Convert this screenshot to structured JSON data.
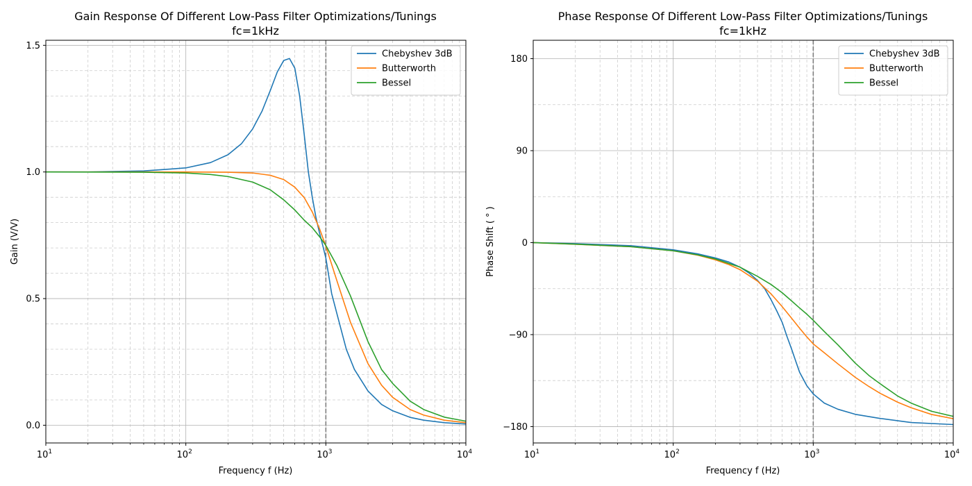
{
  "chart_data": [
    {
      "type": "line",
      "title": "Gain Response Of Different Low-Pass Filter Optimizations/Tunings",
      "subtitle": "fc=1kHz",
      "xlabel": "Frequency f (Hz)",
      "ylabel": "Gain (V/V)",
      "xscale": "log",
      "xlim": [
        10,
        10000
      ],
      "ylim": [
        -0.07,
        1.52
      ],
      "xticks": [
        {
          "value": 10,
          "base": "10",
          "exp": "1"
        },
        {
          "value": 100,
          "base": "10",
          "exp": "2"
        },
        {
          "value": 1000,
          "base": "10",
          "exp": "3"
        },
        {
          "value": 10000,
          "base": "10",
          "exp": "4"
        }
      ],
      "yticks": [
        {
          "value": 0.0,
          "label": "0.0"
        },
        {
          "value": 0.5,
          "label": "0.5"
        },
        {
          "value": 1.0,
          "label": "1.0"
        },
        {
          "value": 1.5,
          "label": "1.5"
        }
      ],
      "yminor_step": 0.1,
      "grid": true,
      "cutoff_line_x": 1000,
      "legend_position": "top-right",
      "series": [
        {
          "name": "Chebyshev 3dB",
          "color": "#1f77b4",
          "x": [
            10,
            20,
            50,
            100,
            150,
            200,
            250,
            300,
            350,
            400,
            450,
            500,
            550,
            600,
            650,
            700,
            750,
            800,
            850,
            900,
            950,
            1000,
            1100,
            1200,
            1400,
            1600,
            2000,
            2500,
            3000,
            4000,
            5000,
            7000,
            10000
          ],
          "y": [
            1.0,
            1.0,
            1.004,
            1.016,
            1.037,
            1.068,
            1.112,
            1.17,
            1.24,
            1.32,
            1.395,
            1.44,
            1.448,
            1.41,
            1.3,
            1.15,
            1.0,
            0.9,
            0.82,
            0.76,
            0.71,
            0.66,
            0.52,
            0.44,
            0.3,
            0.22,
            0.135,
            0.082,
            0.057,
            0.031,
            0.02,
            0.01,
            0.005
          ]
        },
        {
          "name": "Butterworth",
          "color": "#ff7f0e",
          "x": [
            10,
            100,
            200,
            300,
            400,
            500,
            600,
            700,
            800,
            900,
            1000,
            1200,
            1500,
            2000,
            2500,
            3000,
            4000,
            5000,
            7000,
            10000
          ],
          "y": [
            1.0,
            1.0,
            0.999,
            0.996,
            0.987,
            0.97,
            0.94,
            0.899,
            0.842,
            0.777,
            0.707,
            0.57,
            0.406,
            0.243,
            0.158,
            0.11,
            0.062,
            0.04,
            0.02,
            0.01
          ]
        },
        {
          "name": "Bessel",
          "color": "#2ca02c",
          "x": [
            10,
            50,
            100,
            150,
            200,
            300,
            400,
            500,
            600,
            700,
            800,
            900,
            1000,
            1200,
            1500,
            2000,
            2500,
            3000,
            4000,
            5000,
            7000,
            10000
          ],
          "y": [
            1.0,
            0.999,
            0.996,
            0.99,
            0.982,
            0.96,
            0.93,
            0.89,
            0.85,
            0.81,
            0.78,
            0.745,
            0.71,
            0.63,
            0.51,
            0.33,
            0.22,
            0.165,
            0.095,
            0.062,
            0.032,
            0.016
          ]
        }
      ]
    },
    {
      "type": "line",
      "title": "Phase Response Of Different Low-Pass Filter Optimizations/Tunings",
      "subtitle": "fc=1kHz",
      "xlabel": "Frequency f (Hz)",
      "ylabel": "Phase Shift ( ° )",
      "xscale": "log",
      "xlim": [
        10,
        10000
      ],
      "ylim": [
        -196,
        198
      ],
      "xticks": [
        {
          "value": 10,
          "base": "10",
          "exp": "1"
        },
        {
          "value": 100,
          "base": "10",
          "exp": "2"
        },
        {
          "value": 1000,
          "base": "10",
          "exp": "3"
        },
        {
          "value": 10000,
          "base": "10",
          "exp": "4"
        }
      ],
      "yticks": [
        {
          "value": -180,
          "label": "−180"
        },
        {
          "value": -90,
          "label": "−90"
        },
        {
          "value": 0,
          "label": "0"
        },
        {
          "value": 90,
          "label": "90"
        },
        {
          "value": 180,
          "label": "180"
        }
      ],
      "yminor_step": 45,
      "grid": true,
      "cutoff_line_x": 1000,
      "legend_position": "top-right",
      "series": [
        {
          "name": "Chebyshev 3dB",
          "color": "#1f77b4",
          "x": [
            10,
            20,
            50,
            100,
            150,
            200,
            250,
            300,
            350,
            400,
            450,
            500,
            550,
            600,
            650,
            700,
            750,
            800,
            900,
            1000,
            1200,
            1500,
            2000,
            3000,
            5000,
            10000
          ],
          "y": [
            0,
            -1,
            -3,
            -7,
            -11,
            -15,
            -19,
            -24,
            -30,
            -37,
            -45,
            -56,
            -67,
            -78,
            -92,
            -104,
            -116,
            -127,
            -140,
            -148,
            -157,
            -163,
            -168,
            -172,
            -176,
            -178
          ]
        },
        {
          "name": "Butterworth",
          "color": "#ff7f0e",
          "x": [
            10,
            20,
            50,
            100,
            150,
            200,
            250,
            300,
            400,
            500,
            600,
            700,
            800,
            900,
            1000,
            1200,
            1500,
            2000,
            2500,
            3000,
            4000,
            5000,
            7000,
            10000
          ],
          "y": [
            0,
            -1.6,
            -4,
            -8,
            -12.3,
            -16.8,
            -21.5,
            -26.4,
            -37.7,
            -50.2,
            -62.6,
            -73.9,
            -83.8,
            -92.2,
            -99.1,
            -107.8,
            -118.6,
            -131.9,
            -140.8,
            -147.4,
            -156.1,
            -161.5,
            -168.1,
            -172.3
          ]
        },
        {
          "name": "Bessel",
          "color": "#2ca02c",
          "x": [
            10,
            20,
            50,
            100,
            150,
            200,
            300,
            400,
            500,
            600,
            700,
            800,
            900,
            1000,
            1200,
            1500,
            2000,
            2500,
            3000,
            4000,
            5000,
            7000,
            10000
          ],
          "y": [
            0,
            -1.5,
            -4,
            -8,
            -12,
            -16,
            -24,
            -33,
            -41,
            -49,
            -57,
            -64,
            -70,
            -76,
            -87,
            -100,
            -118,
            -130,
            -138,
            -150,
            -157,
            -165,
            -170
          ]
        }
      ]
    }
  ]
}
